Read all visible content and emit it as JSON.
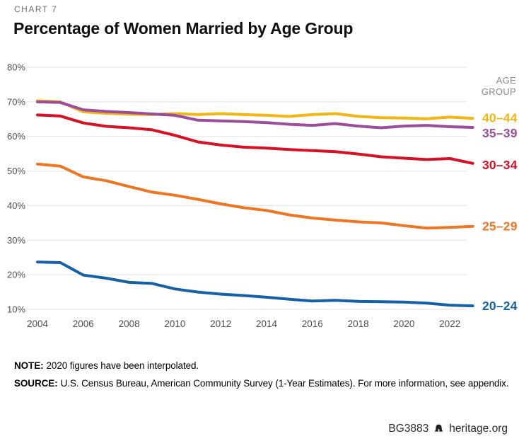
{
  "header": {
    "kicker": "CHART 7",
    "title": "Percentage of Women Married by Age Group"
  },
  "chart_data": {
    "type": "line",
    "title": "Percentage of Women Married by Age Group",
    "x": [
      2004,
      2005,
      2006,
      2007,
      2008,
      2009,
      2010,
      2011,
      2012,
      2013,
      2014,
      2015,
      2016,
      2017,
      2018,
      2019,
      2020,
      2021,
      2022,
      2023
    ],
    "xticks": [
      2004,
      2006,
      2008,
      2010,
      2012,
      2014,
      2016,
      2018,
      2020,
      2022
    ],
    "yticks": [
      80,
      70,
      60,
      50,
      40,
      30,
      20,
      10
    ],
    "ylim": [
      10,
      80
    ],
    "y_unit": "%",
    "grid": true,
    "legend_title": "AGE\nGROUP",
    "legend_position": "right-of-line-ends",
    "series": [
      {
        "name": "40–44",
        "color": "#F2B511",
        "values": [
          70.3,
          70.0,
          67.1,
          66.7,
          66.4,
          66.3,
          66.6,
          66.3,
          66.6,
          66.3,
          66.1,
          65.8,
          66.3,
          66.6,
          65.8,
          65.4,
          65.3,
          65.1,
          65.6,
          65.2
        ]
      },
      {
        "name": "35–39",
        "color": "#9C4C9C",
        "values": [
          70.0,
          69.8,
          67.7,
          67.2,
          66.9,
          66.5,
          66.1,
          64.7,
          64.5,
          64.3,
          64.0,
          63.5,
          63.2,
          63.7,
          63.0,
          62.5,
          63.0,
          63.2,
          62.8,
          62.6
        ]
      },
      {
        "name": "30–34",
        "color": "#D90F23",
        "values": [
          66.2,
          65.9,
          63.9,
          62.9,
          62.5,
          61.9,
          60.3,
          58.4,
          57.5,
          56.9,
          56.6,
          56.2,
          55.9,
          55.6,
          54.9,
          54.1,
          53.7,
          53.3,
          53.6,
          52.2
        ]
      },
      {
        "name": "25–29",
        "color": "#EE7623",
        "values": [
          52.0,
          51.4,
          48.3,
          47.2,
          45.5,
          43.9,
          43.0,
          41.8,
          40.5,
          39.4,
          38.6,
          37.3,
          36.4,
          35.8,
          35.3,
          35.0,
          34.2,
          33.5,
          33.7,
          34.0
        ]
      },
      {
        "name": "20–24",
        "color": "#1660A8",
        "values": [
          23.7,
          23.5,
          19.9,
          19.0,
          17.8,
          17.5,
          15.9,
          15.0,
          14.4,
          14.0,
          13.5,
          12.9,
          12.4,
          12.6,
          12.3,
          12.2,
          12.1,
          11.8,
          11.2,
          11.0
        ]
      }
    ]
  },
  "note": {
    "label": "NOTE:",
    "text": "2020 figures have been interpolated."
  },
  "source": {
    "label": "SOURCE:",
    "text": "U.S. Census Bureau, American Community Survey (1-Year Estimates). For more information, see appendix."
  },
  "footer": {
    "id": "BG3883",
    "site": "heritage.org"
  }
}
